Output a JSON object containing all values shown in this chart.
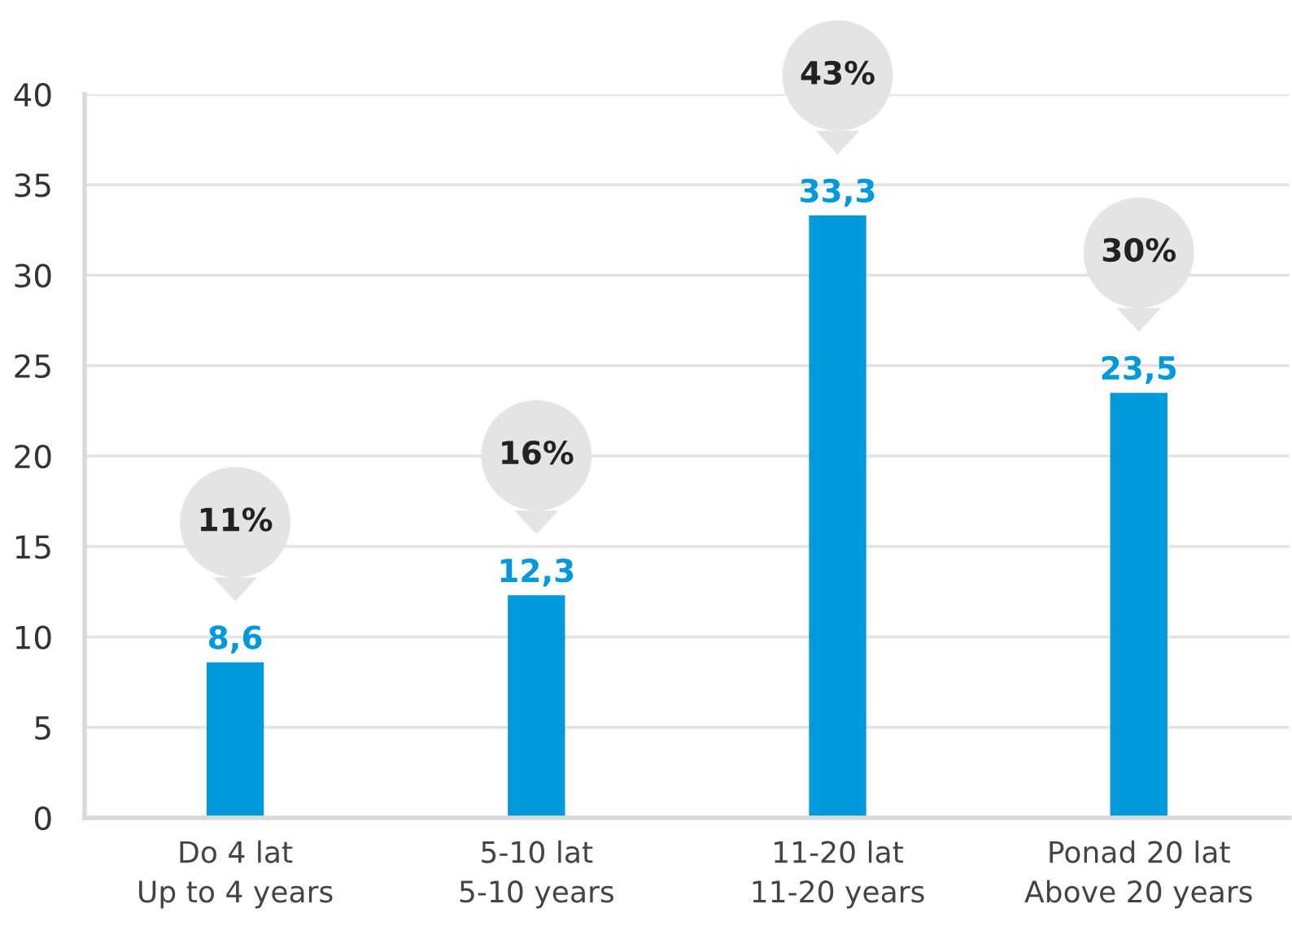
{
  "chart_data": {
    "type": "bar",
    "categories": [
      "Do 4 lat\nUp to 4 years",
      "5-10 lat\n5-10 years",
      "11-20 lat\n11-20 years",
      "Ponad 20 lat\nAbove 20 years"
    ],
    "values": [
      8.6,
      12.3,
      33.3,
      23.5
    ],
    "color": "#0099dc",
    "value_labels": [
      "8,6",
      "12,3",
      "33,3",
      "23,5"
    ],
    "annotations": [
      "11%",
      "16%",
      "43%",
      "30%"
    ],
    "ylim": [
      0,
      40
    ],
    "yticks": [
      0,
      5,
      10,
      15,
      20,
      25,
      30,
      35,
      40
    ],
    "grid": "y",
    "legend": false
  }
}
